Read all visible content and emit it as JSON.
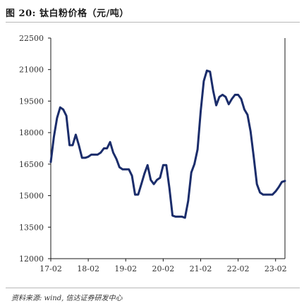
{
  "title": "图 20: 钛白粉价格（元/吨）",
  "source": "资料来源: wind, 信达证券研发中心",
  "colors": {
    "line": "#1b2d6b",
    "axis": "#1a1a1a",
    "rule": "#b8b8b8"
  },
  "chart_data": {
    "type": "line",
    "title": "钛白粉价格（元/吨）",
    "xlabel": "",
    "ylabel": "",
    "ylim": [
      12000,
      22500
    ],
    "yticks": [
      12000,
      13500,
      15000,
      16500,
      18000,
      19500,
      21000,
      22500
    ],
    "xlim": [
      0,
      75
    ],
    "xticks": [
      {
        "label": "17-02",
        "x": 0
      },
      {
        "label": "18-02",
        "x": 12
      },
      {
        "label": "19-02",
        "x": 24
      },
      {
        "label": "20-02",
        "x": 36
      },
      {
        "label": "21-02",
        "x": 48
      },
      {
        "label": "22-02",
        "x": 60
      },
      {
        "label": "23-02",
        "x": 72
      }
    ],
    "grid": false,
    "series": [
      {
        "x": [
          0,
          1,
          2,
          3,
          4,
          5,
          6,
          7,
          8,
          9,
          10,
          11,
          12,
          13,
          14,
          15,
          16,
          17,
          18,
          19,
          20,
          21,
          22,
          23,
          24,
          25,
          26,
          27,
          28,
          29,
          30,
          31,
          32,
          33,
          34,
          35,
          36,
          37,
          38,
          39,
          40,
          41,
          42,
          43,
          44,
          45,
          46,
          47,
          48,
          49,
          50,
          51,
          52,
          53,
          54,
          55,
          56,
          57,
          58,
          59,
          60,
          61,
          62,
          63,
          64,
          65,
          66,
          67,
          68,
          69,
          70,
          71,
          72,
          73,
          74,
          75
        ],
        "values": [
          16600,
          17800,
          18700,
          19200,
          19100,
          18800,
          17400,
          17400,
          17900,
          17400,
          16800,
          16800,
          16850,
          16950,
          16950,
          16950,
          17050,
          17250,
          17250,
          17550,
          17050,
          16750,
          16350,
          16250,
          16250,
          16250,
          15950,
          15050,
          15050,
          15550,
          16050,
          16450,
          15750,
          15550,
          15750,
          15850,
          16450,
          16450,
          15350,
          14050,
          14000,
          14000,
          14000,
          13950,
          14750,
          16100,
          16500,
          17200,
          19000,
          20450,
          20950,
          20900,
          20000,
          19300,
          19700,
          19800,
          19700,
          19350,
          19600,
          19800,
          19800,
          19600,
          19100,
          18850,
          18050,
          16850,
          15550,
          15150,
          15050,
          15050,
          15050,
          15050,
          15200,
          15400,
          15650,
          15700
        ]
      }
    ]
  }
}
